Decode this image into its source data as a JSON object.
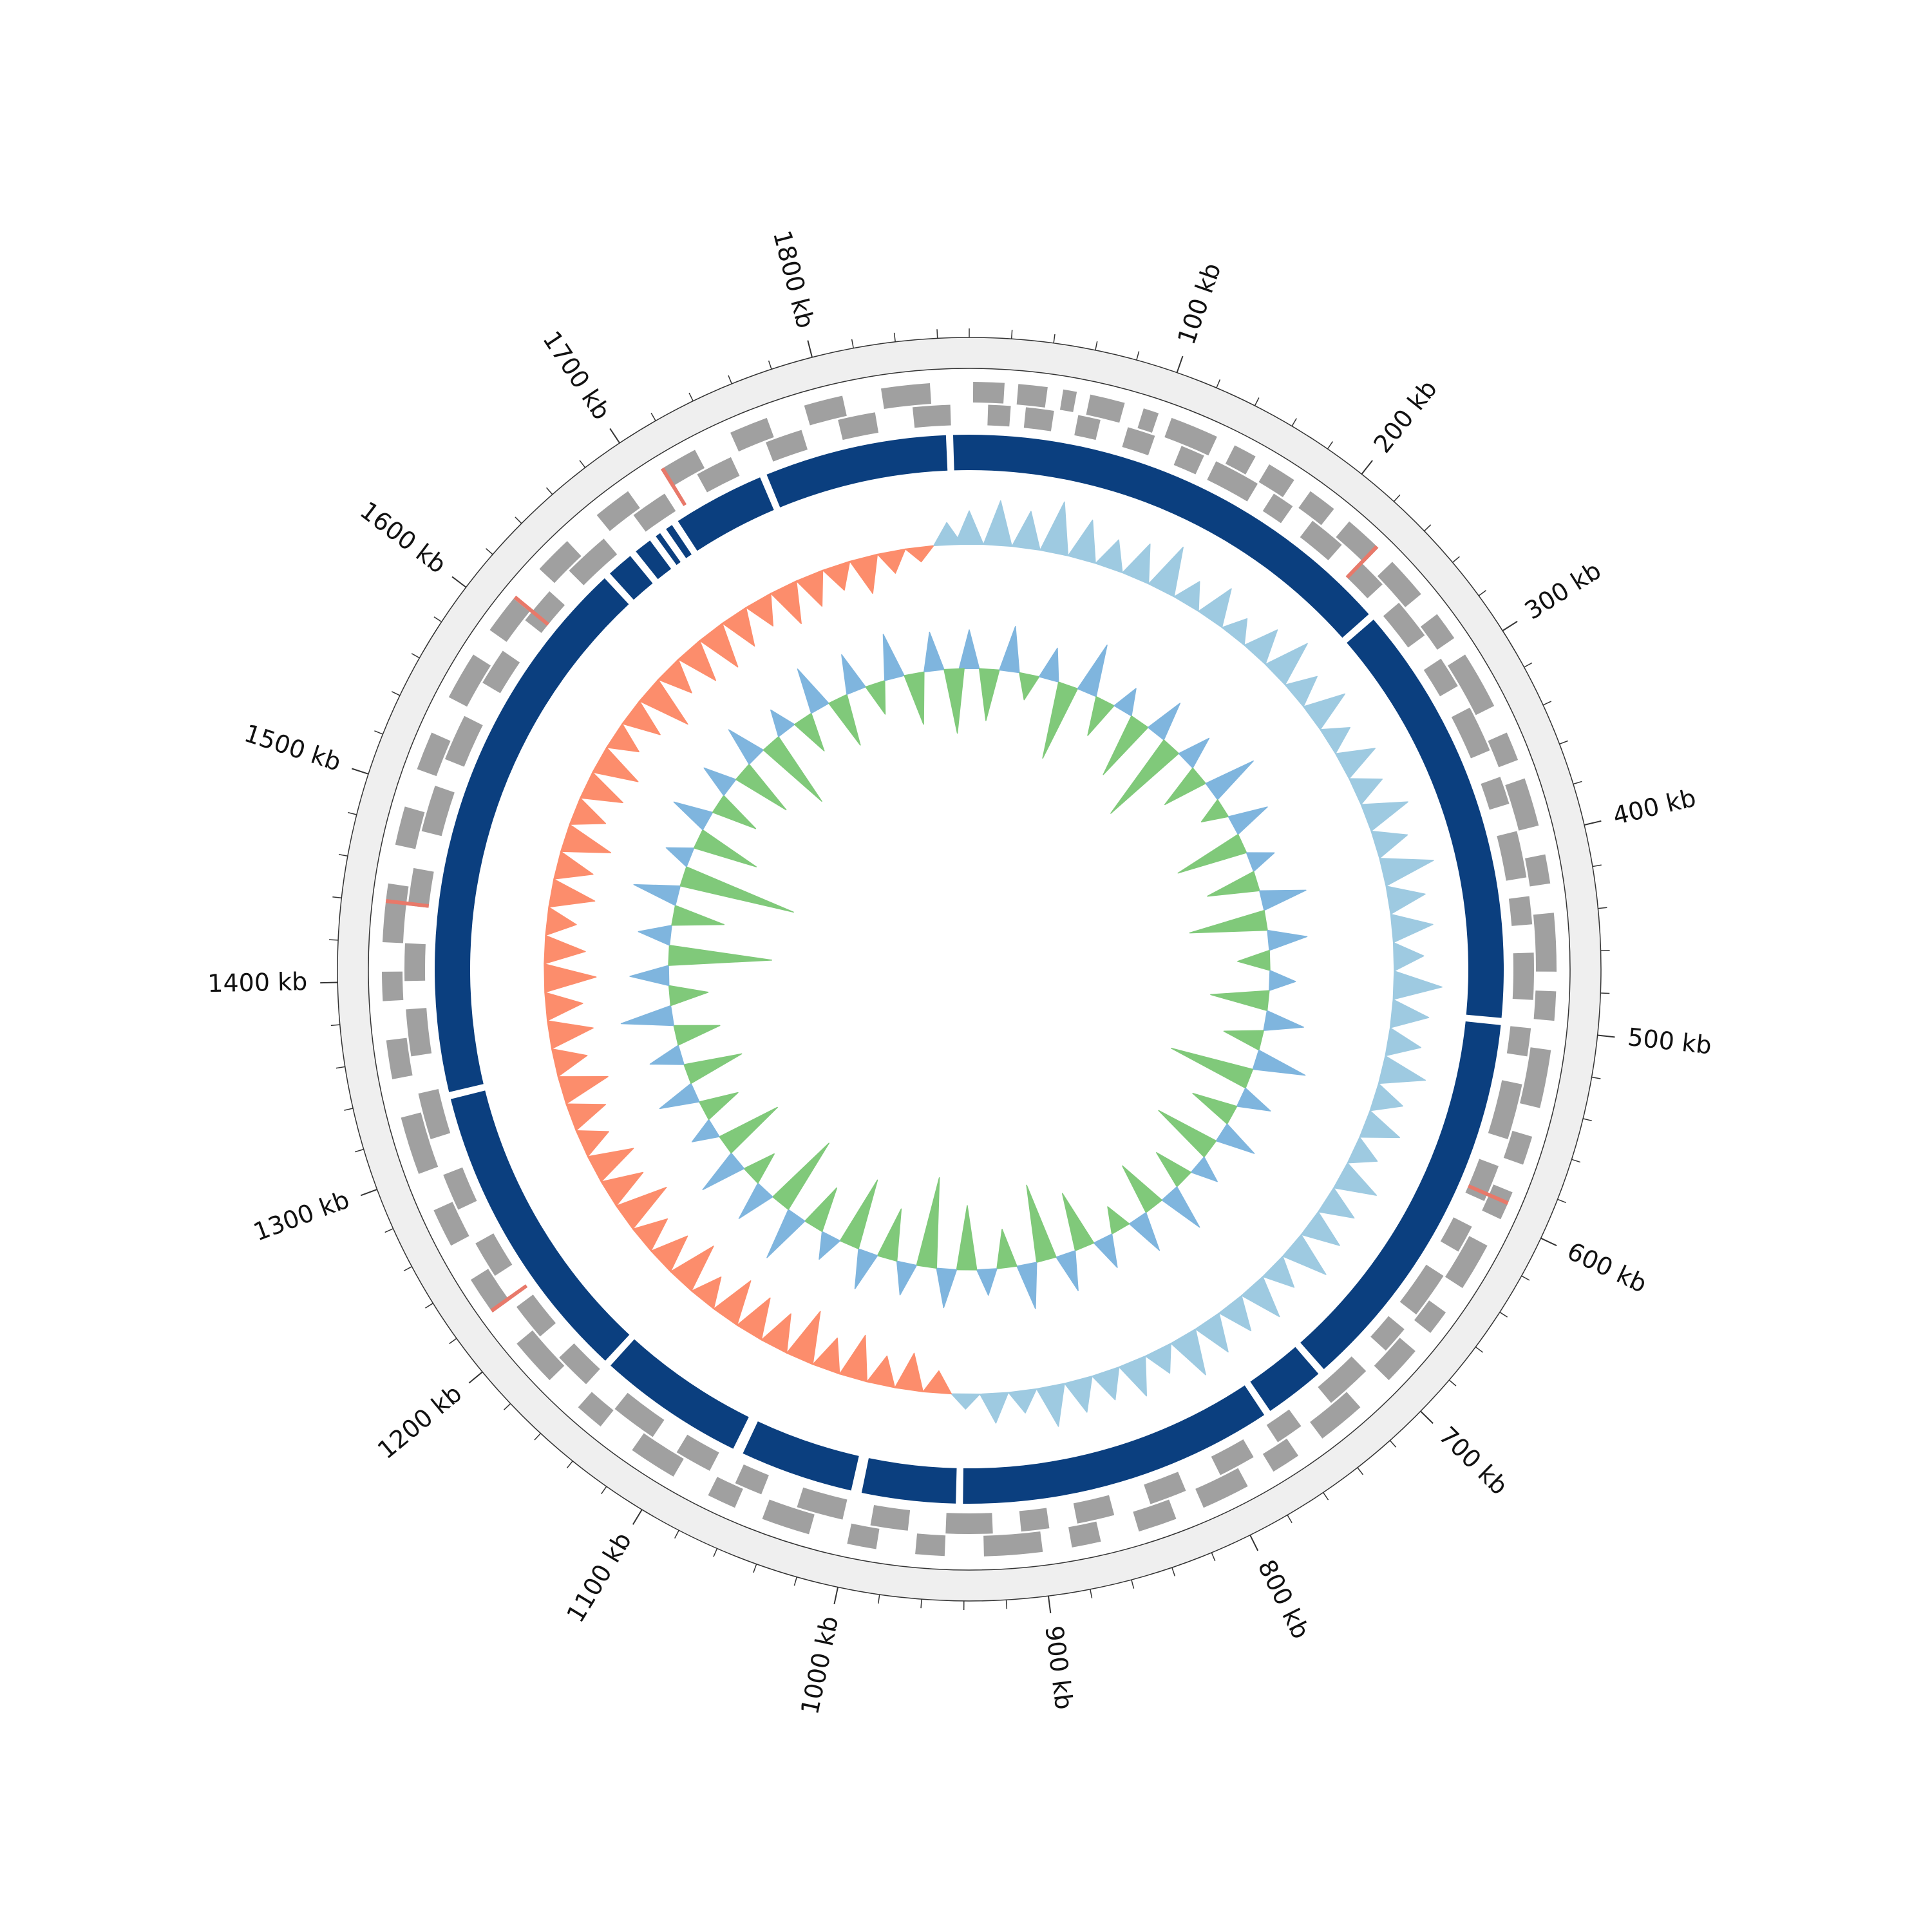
{
  "chart_data": {
    "type": "circular-genome",
    "xlim": [
      0,
      1875
    ],
    "xticks": [
      {
        "value": 100,
        "label": "100 kb"
      },
      {
        "value": 200,
        "label": "200 kb"
      },
      {
        "value": 300,
        "label": "300 kb"
      },
      {
        "value": 400,
        "label": "400 kb"
      },
      {
        "value": 500,
        "label": "500 kb"
      },
      {
        "value": 600,
        "label": "600 kb"
      },
      {
        "value": 700,
        "label": "700 kb"
      },
      {
        "value": 800,
        "label": "800 kb"
      },
      {
        "value": 900,
        "label": "900 kb"
      },
      {
        "value": 1000,
        "label": "1000 kb"
      },
      {
        "value": 1100,
        "label": "1100 kb"
      },
      {
        "value": 1200,
        "label": "1200 kb"
      },
      {
        "value": 1300,
        "label": "1300 kb"
      },
      {
        "value": 1400,
        "label": "1400 kb"
      },
      {
        "value": 1500,
        "label": "1500 kb"
      },
      {
        "value": 1600,
        "label": "1600 kb"
      },
      {
        "value": 1700,
        "label": "1700 kb"
      },
      {
        "value": 1800,
        "label": "1800 kb"
      }
    ],
    "xticks_minor": [
      0,
      20,
      40,
      60,
      80,
      120,
      140,
      160,
      180,
      220,
      240,
      260,
      280,
      320,
      340,
      360,
      380,
      420,
      440,
      460,
      480,
      520,
      540,
      560,
      580,
      620,
      640,
      660,
      680,
      720,
      740,
      760,
      780,
      820,
      840,
      860,
      880,
      920,
      940,
      960,
      980,
      1020,
      1040,
      1060,
      1080,
      1120,
      1140,
      1160,
      1180,
      1220,
      1240,
      1260,
      1280,
      1320,
      1340,
      1360,
      1380,
      1420,
      1440,
      1460,
      1480,
      1520,
      1540,
      1560,
      1580,
      1620,
      1640,
      1660,
      1680,
      1720,
      1740,
      1760,
      1780,
      1820,
      1840,
      1860
    ],
    "gene_color": "#a0a0a0",
    "genes_forward": [
      [
        2,
        18
      ],
      [
        25,
        40
      ],
      [
        48,
        55
      ],
      [
        62,
        80
      ],
      [
        90,
        98
      ],
      [
        105,
        130
      ],
      [
        140,
        152
      ],
      [
        160,
        175
      ],
      [
        185,
        200
      ],
      [
        210,
        230
      ],
      [
        240,
        262
      ],
      [
        275,
        290
      ],
      [
        300,
        330
      ],
      [
        345,
        360
      ],
      [
        370,
        395
      ],
      [
        410,
        425
      ],
      [
        440,
        470
      ],
      [
        480,
        495
      ],
      [
        510,
        540
      ],
      [
        555,
        570
      ],
      [
        585,
        600
      ],
      [
        615,
        640
      ],
      [
        655,
        668
      ],
      [
        680,
        700
      ],
      [
        720,
        745
      ],
      [
        760,
        775
      ],
      [
        790,
        815
      ],
      [
        830,
        850
      ],
      [
        870,
        885
      ],
      [
        900,
        930
      ],
      [
        950,
        965
      ],
      [
        985,
        1000
      ],
      [
        1020,
        1045
      ],
      [
        1060,
        1075
      ],
      [
        1095,
        1120
      ],
      [
        1140,
        1155
      ],
      [
        1175,
        1200
      ],
      [
        1220,
        1240
      ],
      [
        1260,
        1280
      ],
      [
        1300,
        1330
      ],
      [
        1350,
        1370
      ],
      [
        1390,
        1405
      ],
      [
        1420,
        1450
      ],
      [
        1470,
        1490
      ],
      [
        1510,
        1530
      ],
      [
        1550,
        1575
      ],
      [
        1590,
        1610
      ],
      [
        1630,
        1650
      ],
      [
        1670,
        1690
      ],
      [
        1710,
        1730
      ],
      [
        1750,
        1770
      ],
      [
        1790,
        1810
      ],
      [
        1830,
        1855
      ]
    ],
    "genes_reverse": [
      [
        10,
        22
      ],
      [
        30,
        45
      ],
      [
        58,
        70
      ],
      [
        85,
        100
      ],
      [
        115,
        128
      ],
      [
        135,
        160
      ],
      [
        170,
        182
      ],
      [
        195,
        215
      ],
      [
        228,
        245
      ],
      [
        258,
        280
      ],
      [
        295,
        312
      ],
      [
        325,
        350
      ],
      [
        365,
        380
      ],
      [
        395,
        420
      ],
      [
        430,
        445
      ],
      [
        460,
        485
      ],
      [
        500,
        515
      ],
      [
        530,
        560
      ],
      [
        575,
        595
      ],
      [
        610,
        625
      ],
      [
        640,
        665
      ],
      [
        675,
        690
      ],
      [
        705,
        730
      ],
      [
        750,
        765
      ],
      [
        780,
        800
      ],
      [
        820,
        840
      ],
      [
        860,
        880
      ],
      [
        895,
        910
      ],
      [
        925,
        950
      ],
      [
        970,
        990
      ],
      [
        1005,
        1030
      ],
      [
        1050,
        1065
      ],
      [
        1080,
        1100
      ],
      [
        1115,
        1140
      ],
      [
        1160,
        1180
      ],
      [
        1195,
        1215
      ],
      [
        1235,
        1255
      ],
      [
        1275,
        1295
      ],
      [
        1315,
        1340
      ],
      [
        1360,
        1385
      ],
      [
        1400,
        1420
      ],
      [
        1440,
        1460
      ],
      [
        1480,
        1505
      ],
      [
        1520,
        1545
      ],
      [
        1565,
        1585
      ],
      [
        1605,
        1625
      ],
      [
        1640,
        1665
      ],
      [
        1685,
        1705
      ],
      [
        1725,
        1745
      ],
      [
        1765,
        1785
      ],
      [
        1805,
        1825
      ],
      [
        1845,
        1865
      ]
    ],
    "rna_color": "#e8796a",
    "genes_rna": [
      [
        228,
        230
      ],
      [
        590,
        592
      ],
      [
        1220,
        1222
      ],
      [
        1440,
        1442
      ],
      [
        1610,
        1612
      ],
      [
        1710,
        1712
      ]
    ],
    "contig_color": "#0b3f7f",
    "contigs": [
      [
        0,
        252
      ],
      [
        256,
        496
      ],
      [
        500,
        721
      ],
      [
        725,
        759
      ],
      [
        763,
        941
      ],
      [
        945,
        998
      ],
      [
        1004,
        1068
      ],
      [
        1074,
        1157
      ],
      [
        1161,
        1333
      ],
      [
        1337,
        1651
      ],
      [
        1655,
        1670
      ],
      [
        1674,
        1684
      ],
      [
        1688,
        1691
      ],
      [
        1695,
        1699
      ],
      [
        1703,
        1755
      ],
      [
        1759,
        1862
      ],
      [
        1866,
        1875
      ]
    ],
    "x": [
      0,
      20,
      40,
      60,
      80,
      100,
      120,
      140,
      160,
      180,
      200,
      220,
      240,
      260,
      280,
      300,
      320,
      340,
      360,
      380,
      400,
      420,
      440,
      460,
      480,
      500,
      520,
      540,
      560,
      580,
      600,
      620,
      640,
      660,
      680,
      700,
      720,
      740,
      760,
      780,
      800,
      820,
      840,
      860,
      880,
      900,
      920,
      940,
      960,
      980,
      1000,
      1020,
      1040,
      1060,
      1080,
      1100,
      1120,
      1140,
      1160,
      1180,
      1200,
      1220,
      1240,
      1260,
      1280,
      1300,
      1320,
      1340,
      1360,
      1380,
      1400,
      1420,
      1440,
      1460,
      1480,
      1500,
      1520,
      1540,
      1560,
      1580,
      1600,
      1620,
      1640,
      1660,
      1680,
      1700,
      1720,
      1740,
      1760,
      1780,
      1800,
      1820,
      1840,
      1860
    ],
    "series": [
      {
        "color": "#9ecae1",
        "color_negative": "#fc8d6c",
        "values": [
          0.45,
          0.6,
          0.5,
          0.7,
          0.55,
          0.4,
          0.5,
          0.65,
          0.35,
          0.5,
          0.3,
          0.45,
          0.6,
          0.4,
          0.55,
          0.35,
          0.5,
          0.4,
          0.6,
          0.45,
          0.7,
          0.5,
          0.55,
          0.4,
          0.65,
          0.5,
          0.45,
          0.6,
          0.4,
          0.5,
          0.35,
          0.55,
          0.45,
          0.5,
          0.6,
          0.4,
          0.55,
          0.45,
          0.5,
          0.6,
          0.35,
          0.5,
          0.4,
          0.45,
          0.55,
          0.3,
          0.4,
          0.2,
          -0.3,
          -0.5,
          -0.4,
          -0.6,
          -0.45,
          -0.7,
          -0.5,
          -0.55,
          -0.6,
          -0.4,
          -0.65,
          -0.5,
          -0.45,
          -0.7,
          -0.55,
          -0.6,
          -0.4,
          -0.5,
          -0.65,
          -0.45,
          -0.6,
          -0.5,
          -0.7,
          -0.55,
          -0.4,
          -0.6,
          -0.5,
          -0.65,
          -0.45,
          -0.55,
          -0.6,
          -0.4,
          -0.5,
          -0.7,
          -0.45,
          -0.55,
          -0.6,
          -0.5,
          -0.4,
          -0.55,
          -0.45,
          -0.35,
          -0.5,
          -0.3,
          -0.2,
          0.3
        ]
      },
      {
        "color": "#7fb5de",
        "color_negative": "#80c97a",
        "values": [
          0.3,
          -0.4,
          0.35,
          -0.2,
          0.25,
          -0.6,
          0.4,
          -0.3,
          0.2,
          -0.5,
          0.3,
          -0.7,
          0.25,
          -0.35,
          0.4,
          -0.2,
          0.3,
          -0.55,
          0.2,
          -0.4,
          0.35,
          -0.6,
          0.3,
          -0.25,
          0.2,
          -0.45,
          0.3,
          -0.3,
          0.4,
          -0.65,
          0.25,
          -0.35,
          0.3,
          -0.5,
          0.2,
          -0.3,
          0.35,
          -0.4,
          0.3,
          -0.2,
          0.25,
          -0.45,
          0.3,
          -0.6,
          0.35,
          -0.3,
          0.2,
          -0.5,
          0.3,
          -0.7,
          0.25,
          -0.4,
          0.3,
          -0.55,
          0.2,
          -0.35,
          0.4,
          -0.6,
          0.3,
          -0.25,
          0.35,
          -0.5,
          0.2,
          -0.3,
          0.3,
          -0.45,
          0.25,
          -0.35,
          0.4,
          -0.3,
          0.3,
          -0.8,
          0.25,
          -0.4,
          0.35,
          -0.9,
          0.2,
          -0.5,
          0.3,
          -0.35,
          0.25,
          -0.45,
          0.3,
          -0.6,
          0.2,
          -0.3,
          0.35,
          -0.4,
          0.3,
          -0.25,
          0.35,
          -0.4,
          0.3,
          -0.5
        ]
      }
    ]
  }
}
